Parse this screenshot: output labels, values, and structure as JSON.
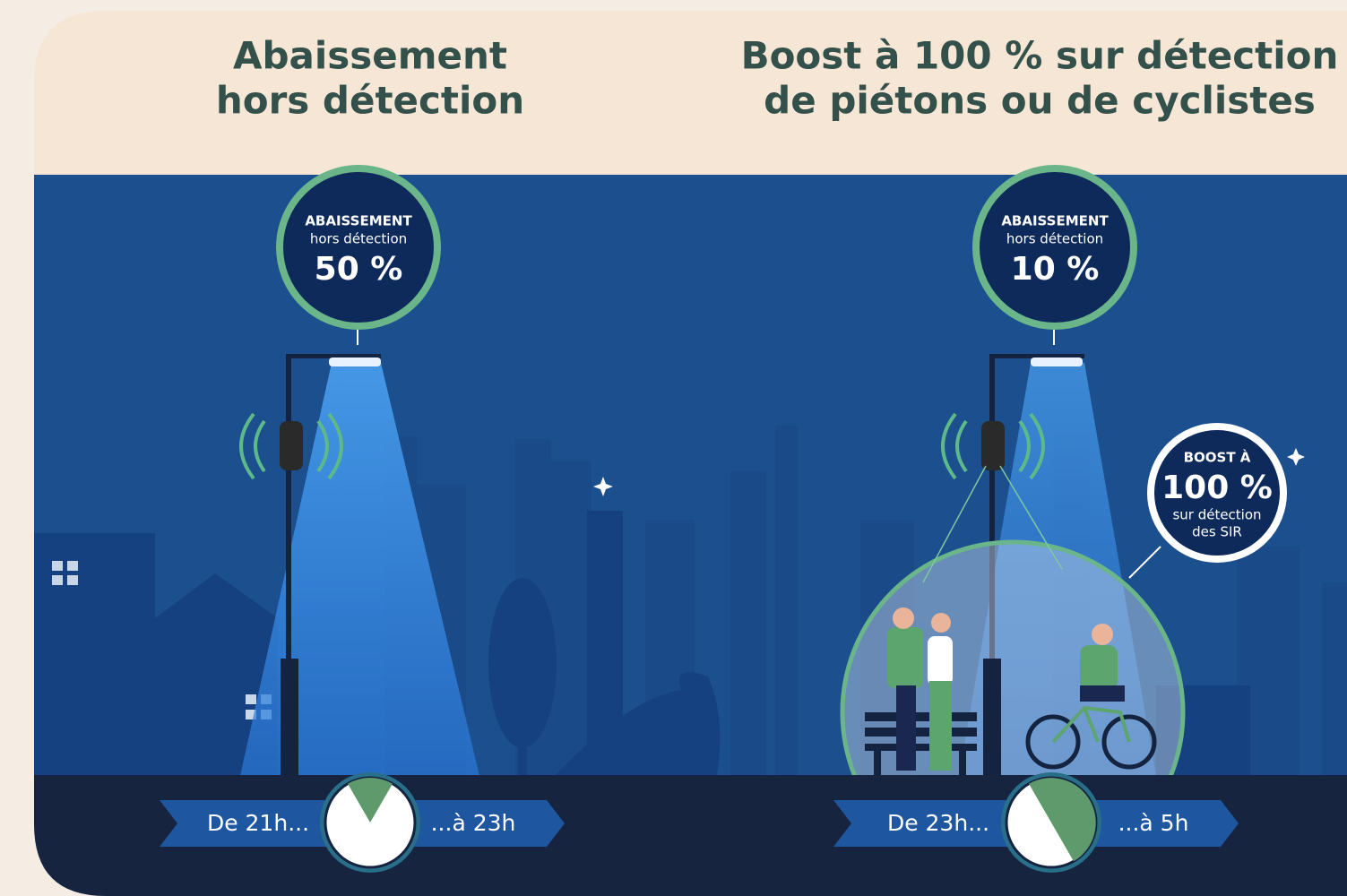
{
  "panels": [
    {
      "title_lines": [
        "Abaissement",
        "hors détection"
      ],
      "badge": {
        "heading": "ABAISSEMENT",
        "sub": "hors détection",
        "value": "50 %"
      },
      "time_from": "De 21h...",
      "time_to": "...à 23h"
    },
    {
      "title_lines": [
        "Boost à 100 % sur détection",
        "de piétons ou de cyclistes"
      ],
      "badge": {
        "heading": "ABAISSEMENT",
        "sub": "hors détection",
        "value": "10 %"
      },
      "boost": {
        "heading": "BOOST À",
        "value": "100 %",
        "sub_lines": [
          "sur détection",
          "des SIR"
        ]
      },
      "time_from": "De 23h...",
      "time_to": "...à 5h"
    }
  ]
}
